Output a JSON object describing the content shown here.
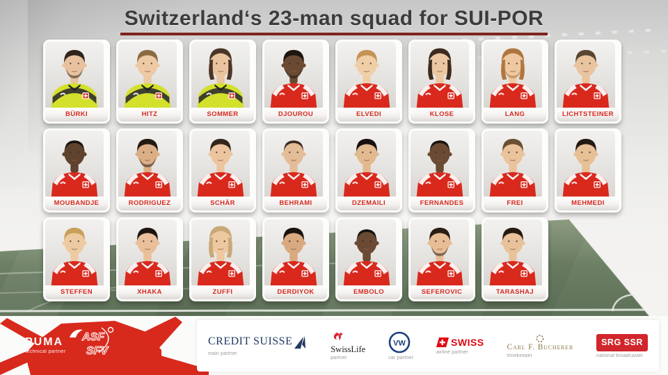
{
  "title": {
    "text": "Switzerland‘s 23-man squad for SUI-POR"
  },
  "colors": {
    "accent_red": "#d8291d",
    "name_text": "#d5291f",
    "title_text": "#3c3c3e",
    "title_underline": "#7e241e",
    "gk_jersey": "#d3e02c",
    "field_jersey": "#d9291d",
    "pitch_green": "#66795f",
    "sponsor_navy": "#23395f",
    "swiss_red": "#e30613",
    "bucherer_gold": "#8a7848",
    "srg_red": "#d0262c"
  },
  "squad": {
    "rows": [
      {
        "players": [
          {
            "name": "BÜRKI",
            "jersey": "gk",
            "skin": "#e8c29e",
            "hair": "#2f241c",
            "hair_style": "short",
            "beard": true
          },
          {
            "name": "HITZ",
            "jersey": "gk",
            "skin": "#edc9a4",
            "hair": "#8a6b42",
            "hair_style": "short",
            "beard": false
          },
          {
            "name": "SOMMER",
            "jersey": "gk",
            "skin": "#e9c49e",
            "hair": "#4a3526",
            "hair_style": "long",
            "beard": false
          },
          {
            "name": "DJOUROU",
            "jersey": "field",
            "skin": "#6b4a33",
            "hair": "#1d150f",
            "hair_style": "short",
            "beard": true
          },
          {
            "name": "ELVEDI",
            "jersey": "field",
            "skin": "#f0cfa8",
            "hair": "#c59255",
            "hair_style": "short",
            "beard": false
          },
          {
            "name": "KLOSE",
            "jersey": "field",
            "skin": "#ecc7a2",
            "hair": "#3c2b1e",
            "hair_style": "long",
            "beard": false
          },
          {
            "name": "LANG",
            "jersey": "field",
            "skin": "#eec8a0",
            "hair": "#b0763f",
            "hair_style": "long",
            "beard": true
          },
          {
            "name": "LICHTSTEINER",
            "jersey": "field",
            "skin": "#e9c49e",
            "hair": "#5a4530",
            "hair_style": "short",
            "beard": false
          }
        ]
      },
      {
        "players": [
          {
            "name": "MOUBANDJE",
            "jersey": "field",
            "skin": "#5f432f",
            "hair": "#15100c",
            "hair_style": "buzz",
            "beard": false
          },
          {
            "name": "RODRIGUEZ",
            "jersey": "field",
            "skin": "#dcae85",
            "hair": "#241a12",
            "hair_style": "short",
            "beard": true
          },
          {
            "name": "SCHÄR",
            "jersey": "field",
            "skin": "#ecc5a0",
            "hair": "#33261a",
            "hair_style": "short",
            "beard": false
          },
          {
            "name": "BEHRAMI",
            "jersey": "field",
            "skin": "#e3bd97",
            "hair": "#2a2019",
            "hair_style": "buzz",
            "beard": false
          },
          {
            "name": "DZEMAILI",
            "jersey": "field",
            "skin": "#e3b98f",
            "hair": "#17100c",
            "hair_style": "short",
            "beard": false
          },
          {
            "name": "FERNANDES",
            "jersey": "field",
            "skin": "#6b4a33",
            "hair": "#140f0b",
            "hair_style": "buzz",
            "beard": false
          },
          {
            "name": "FREI",
            "jersey": "field",
            "skin": "#eac29c",
            "hair": "#6b4f33",
            "hair_style": "short",
            "beard": false
          },
          {
            "name": "MEHMEDI",
            "jersey": "field",
            "skin": "#e8c096",
            "hair": "#241a12",
            "hair_style": "short",
            "beard": false
          }
        ]
      },
      {
        "players": [
          {
            "name": "STEFFEN",
            "jersey": "field",
            "skin": "#eecaa2",
            "hair": "#c9a05a",
            "hair_style": "short",
            "beard": false
          },
          {
            "name": "XHAKA",
            "jersey": "field",
            "skin": "#e9c09a",
            "hair": "#1d140f",
            "hair_style": "short",
            "beard": false
          },
          {
            "name": "ZUFFI",
            "jersey": "field",
            "skin": "#edc8a0",
            "hair": "#c9a878",
            "hair_style": "long",
            "beard": false
          },
          {
            "name": "DERDIYOK",
            "jersey": "field",
            "skin": "#d9a97f",
            "hair": "#1a120d",
            "hair_style": "short",
            "beard": false
          },
          {
            "name": "EMBOLO",
            "jersey": "field",
            "skin": "#6b4a33",
            "hair": "#120d09",
            "hair_style": "buzz",
            "beard": false
          },
          {
            "name": "SEFEROVIC",
            "jersey": "field",
            "skin": "#e6bd95",
            "hair": "#2a1d14",
            "hair_style": "short",
            "beard": true
          },
          {
            "name": "TARASHAJ",
            "jersey": "field",
            "skin": "#e9c29b",
            "hair": "#241a12",
            "hair_style": "short",
            "beard": false
          }
        ]
      }
    ]
  },
  "footer": {
    "puma": {
      "brand": "PUMA",
      "tagline": "technical partner"
    },
    "sfv": {
      "line1": "ASF",
      "line2": "SFV"
    },
    "sponsors": [
      {
        "id": "credit-suisse",
        "display": "CREDIT SUISSE",
        "caption": "main partner"
      },
      {
        "id": "swiss-life",
        "display": "SwissLife",
        "caption": "partner"
      },
      {
        "id": "vw",
        "display": "VW",
        "caption": "car partner"
      },
      {
        "id": "swiss",
        "display": "SWISS",
        "caption": "airline partner"
      },
      {
        "id": "bucherer",
        "display": "Carl F. Bucherer",
        "caption": "timekeeper"
      },
      {
        "id": "srg-ssr",
        "display": "SRG SSR",
        "caption": "national broadcaster"
      }
    ]
  }
}
